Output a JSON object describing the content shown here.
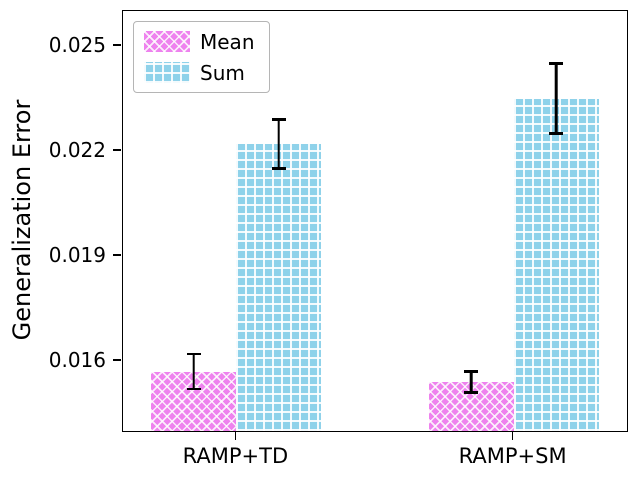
{
  "chart_data": {
    "type": "bar",
    "categories": [
      "RAMP+TD",
      "RAMP+SM"
    ],
    "series": [
      {
        "name": "Mean",
        "values": [
          0.0157,
          0.0154
        ],
        "errors": [
          0.0005,
          0.0003
        ],
        "color": "#ee82ee",
        "hatch": "xx"
      },
      {
        "name": "Sum",
        "values": [
          0.0222,
          0.0235
        ],
        "errors": [
          0.0007,
          0.001
        ],
        "color": "#8fd2ea",
        "hatch": "grid"
      }
    ],
    "title": "",
    "xlabel": "",
    "ylabel": "Generalization Error",
    "yticks": [
      0.016,
      0.019,
      0.022,
      0.025
    ],
    "ylim": [
      0.014,
      0.026
    ],
    "grid": false,
    "legend": {
      "position": "upper-left",
      "entries": [
        "Mean",
        "Sum"
      ]
    }
  }
}
